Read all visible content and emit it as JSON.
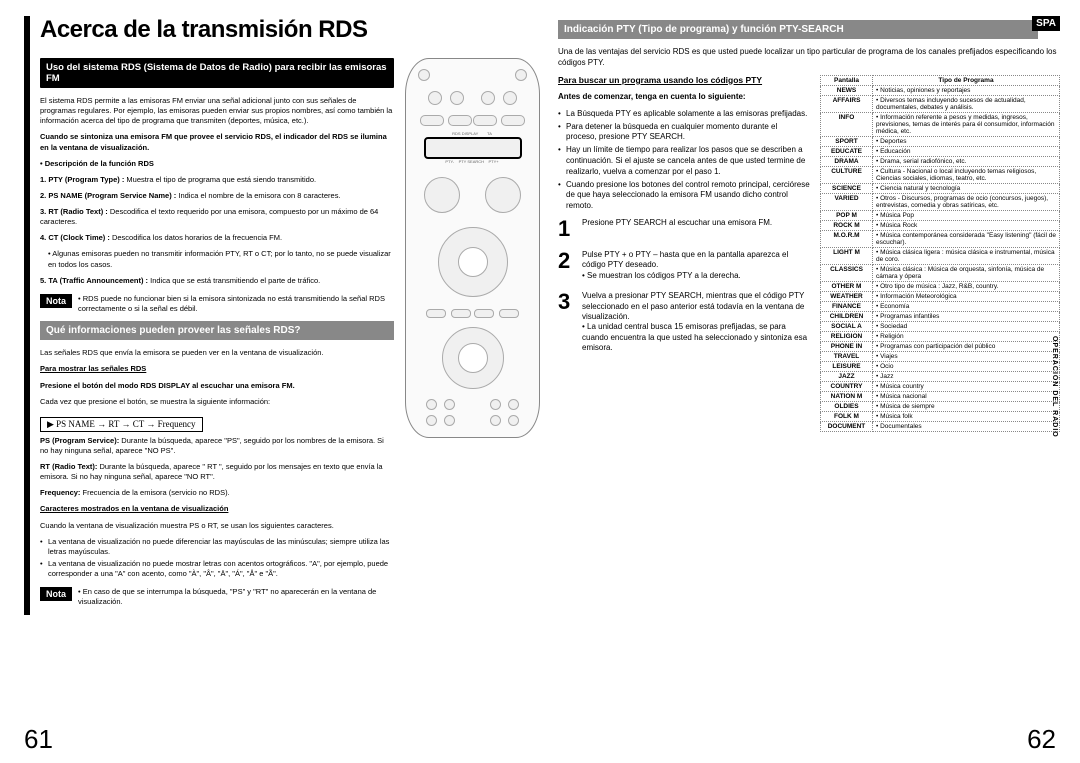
{
  "title": "Acerca de la transmisión RDS",
  "sp_tag": "SPA",
  "vert_label": "OPERACIÓN DEL RADIO",
  "page_left": "61",
  "page_right": "62",
  "left": {
    "header1": "Uso del sistema RDS (Sistema de Datos de Radio) para recibir las emisoras FM",
    "intro": "El sistema RDS permite a las emisoras FM enviar una señal adicional junto con sus señales de programas regulares. Por ejemplo, las emisoras pueden enviar sus propios nombres, así como también la información acerca del tipo de programa que transmiten (deportes, música, etc.).",
    "bold1": "Cuando se sintoniza una emisora FM que provee el servicio RDS, el indicador del RDS se ilumina en la ventana de visualización.",
    "desc_label": "• Descripción de la función RDS",
    "f1": "1. PTY (Program Type) : Muestra el tipo de programa que está siendo transmitido.",
    "f2": "2. PS NAME (Program Service Name) : Indica el nombre de la emisora con 8 caracteres.",
    "f3": "3. RT (Radio Text) : Descodifica el texto requerido por una emisora, compuesto por un máximo de 64 caracteres.",
    "f4": "4. CT (Clock Time) : Descodifica los datos horarios de la frecuencia FM.",
    "f4b": "• Algunas emisoras pueden no transmitir información PTY, RT o CT; por lo tanto, no se puede visualizar en todos los casos.",
    "f5": "5. TA (Traffic Announcement) : Indica que se está transmitiendo el parte de tráfico.",
    "nota1": "RDS puede no funcionar bien si la emisora sintonizada no está transmitiendo la señal RDS correctamente o si la señal es débil.",
    "header2": "Qué informaciones pueden proveer las señales RDS?",
    "p2a": "Las señales RDS que envía la emisora se pueden ver en la ventana de visualización.",
    "p2b_label": "Para mostrar las señales RDS",
    "p2b": "Presione el botón del modo RDS DISPLAY al escuchar una emisora FM.",
    "p2c": "Cada vez que presione el botón, se muestra la siguiente información:",
    "sequence": "PS NAME → RT → CT → Frequency",
    "ps_desc": "PS (Program Service): Durante la búsqueda, aparece \"PS\", seguido por los nombres de la emisora. Si no hay ninguna señal, aparece \"NO PS\".",
    "rt_desc": "RT (Radio Text): Durante la búsqueda, aparece \" RT \", seguido por los mensajes en texto que envía la emisora. Si no hay ninguna señal, aparece \"NO RT\".",
    "freq_desc": "Frequency: Frecuencia de la emisora (servicio no RDS).",
    "char_label": "Caracteres mostrados en la ventana de visualización",
    "char1": "Cuando la ventana de visualización muestra PS o RT, se usan los siguientes caracteres.",
    "char2": "La ventana de visualización no puede diferenciar las mayúsculas de las minúsculas; siempre utiliza las letras mayúsculas.",
    "char3": "La ventana de visualización no puede mostrar letras con acentos ortográficos. \"A\", por ejemplo, puede corresponder a una \"A\" con acento, como \"À\", \"Â\", \"Ä\", \"Á\", \"Å\" e \"Ã\".",
    "nota2": "En caso de que se interrumpa la búsqueda, \"PS\" y \"RT\" no aparecerán en la ventana de visualización.",
    "nota_label": "Nota"
  },
  "right": {
    "header": "Indicación PTY (Tipo de programa) y función PTY-SEARCH",
    "intro": "Una de las ventajas del servicio RDS es que usted puede localizar un tipo particular de programa de los canales prefijados especificando los códigos PTY.",
    "search_label": "Para buscar un programa usando los códigos PTY",
    "before_label": "Antes de comenzar, tenga en cuenta lo siguiente:",
    "b1": "La Búsqueda PTY es aplicable solamente a las emisoras prefijadas.",
    "b2": "Para detener la búsqueda en cualquier momento durante el proceso, presione PTY SEARCH.",
    "b3": "Hay un límite de tiempo para realizar los pasos que se describen a continuación. Si el ajuste se cancela antes de que usted termine de realizarlo, vuelva a comenzar por el paso 1.",
    "b4": "Cuando presione los botones del control remoto principal, cerciórese de que haya seleccionado la emisora FM usando dicho control remoto.",
    "s1": "Presione PTY SEARCH al escuchar una emisora FM.",
    "s2a": "Pulse PTY + o PTY – hasta que en la pantalla aparezca el código PTY deseado.",
    "s2b": "Se muestran los códigos PTY a la derecha.",
    "s3a": "Vuelva a presionar PTY SEARCH, mientras que el código PTY seleccionado en el paso anterior está todavía en la ventana de visualización.",
    "s3b": "La unidad central busca 15 emisoras prefijadas, se para cuando encuentra la que usted ha seleccionado y sintoniza esa emisora.",
    "table_h1": "Pantalla",
    "table_h2": "Tipo de Programa",
    "rows": [
      [
        "NEWS",
        "Noticias, opiniones y reportajes"
      ],
      [
        "AFFAIRS",
        "Diversos temas incluyendo sucesos de actualidad, documentales, debates y análisis."
      ],
      [
        "INFO",
        "Información referente a pesos y medidas, ingresos, previsiones, temas de interés para él consumidor, información médica, etc."
      ],
      [
        "SPORT",
        "Deportes"
      ],
      [
        "EDUCATE",
        "Educación"
      ],
      [
        "DRAMA",
        "Drama, serial radiofónico, etc."
      ],
      [
        "CULTURE",
        "Cultura - Nacional o local incluyendo temas religiosos, Ciencias sociales, idiomas, teatro, etc."
      ],
      [
        "SCIENCE",
        "Ciencia natural y tecnología"
      ],
      [
        "VARIED",
        "Otros - Discursos, programas de ocio (concursos, juegos), entrevistas, comedia y obras satíricas, etc."
      ],
      [
        "POP M",
        "Música Pop"
      ],
      [
        "ROCK M",
        "Música Rock"
      ],
      [
        "M.O.R.M",
        "Música contemporánea considerada \"Easy listening\" (fácil de escuchar)."
      ],
      [
        "LIGHT M",
        "Música clásica ligera : música clásica e instrumental, música de coro."
      ],
      [
        "CLASSICS",
        "Música clásica : Música de orquesta, sinfonía, música de cámara y ópera"
      ],
      [
        "OTHER M",
        "Otro tipo de música : Jazz, R&B, country."
      ],
      [
        "WEATHER",
        "Información Meteorológica"
      ],
      [
        "FINANCE",
        "Economía"
      ],
      [
        "CHILDREN",
        "Programas infantiles"
      ],
      [
        "SOCIAL A",
        "Sociedad"
      ],
      [
        "RELIGION",
        "Religión"
      ],
      [
        "PHONE IN",
        "Programas con participación del público"
      ],
      [
        "TRAVEL",
        "Viajes"
      ],
      [
        "LEISURE",
        "Ocio"
      ],
      [
        "JAZZ",
        "Jazz"
      ],
      [
        "COUNTRY",
        "Música country"
      ],
      [
        "NATION M",
        "Música nacional"
      ],
      [
        "OLDIES",
        "Música de siempre"
      ],
      [
        "FOLK M",
        "Música folk"
      ],
      [
        "DOCUMENT",
        "Documentales"
      ]
    ]
  }
}
